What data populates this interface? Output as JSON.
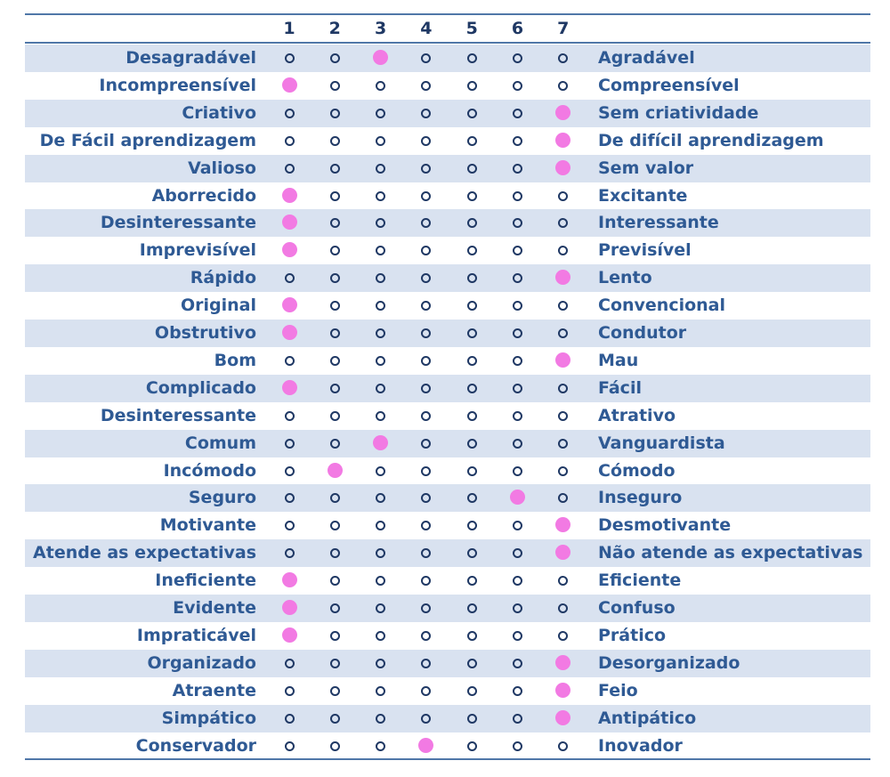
{
  "scale_points": [
    "1",
    "2",
    "3",
    "4",
    "5",
    "6",
    "7"
  ],
  "colors": {
    "rule": "#4f77a8",
    "shade": "#d9e2f0",
    "label": "#2f5a94",
    "header": "#1f3864",
    "marker": "#f27ae3"
  },
  "items": [
    {
      "left": "Desagradável",
      "right": "Agradável",
      "selected": 3
    },
    {
      "left": "Incompreensível",
      "right": "Compreensível",
      "selected": 1
    },
    {
      "left": "Criativo",
      "right": "Sem criatividade",
      "selected": 7
    },
    {
      "left": "De Fácil aprendizagem",
      "right": "De difícil aprendizagem",
      "selected": 7
    },
    {
      "left": "Valioso",
      "right": "Sem valor",
      "selected": 7
    },
    {
      "left": "Aborrecido",
      "right": "Excitante",
      "selected": 1
    },
    {
      "left": "Desinteressante",
      "right": "Interessante",
      "selected": 1
    },
    {
      "left": "Imprevisível",
      "right": "Previsível",
      "selected": 1
    },
    {
      "left": "Rápido",
      "right": "Lento",
      "selected": 7
    },
    {
      "left": "Original",
      "right": "Convencional",
      "selected": 1
    },
    {
      "left": "Obstrutivo",
      "right": "Condutor",
      "selected": 1
    },
    {
      "left": "Bom",
      "right": "Mau",
      "selected": 7
    },
    {
      "left": "Complicado",
      "right": "Fácil",
      "selected": 1
    },
    {
      "left": "Desinteressante",
      "right": "Atrativo",
      "selected": null
    },
    {
      "left": "Comum",
      "right": "Vanguardista",
      "selected": 3
    },
    {
      "left": "Incómodo",
      "right": "Cómodo",
      "selected": 2
    },
    {
      "left": "Seguro",
      "right": "Inseguro",
      "selected": 6
    },
    {
      "left": "Motivante",
      "right": "Desmotivante",
      "selected": 7
    },
    {
      "left": "Atende as expectativas",
      "right": "Não atende as expectativas",
      "selected": 7
    },
    {
      "left": "Ineficiente",
      "right": "Eficiente",
      "selected": 1
    },
    {
      "left": "Evidente",
      "right": "Confuso",
      "selected": 1
    },
    {
      "left": "Impraticável",
      "right": "Prático",
      "selected": 1
    },
    {
      "left": "Organizado",
      "right": "Desorganizado",
      "selected": 7
    },
    {
      "left": "Atraente",
      "right": "Feio",
      "selected": 7
    },
    {
      "left": "Simpático",
      "right": "Antipático",
      "selected": 7
    },
    {
      "left": "Conservador",
      "right": "Inovador",
      "selected": 4
    }
  ]
}
